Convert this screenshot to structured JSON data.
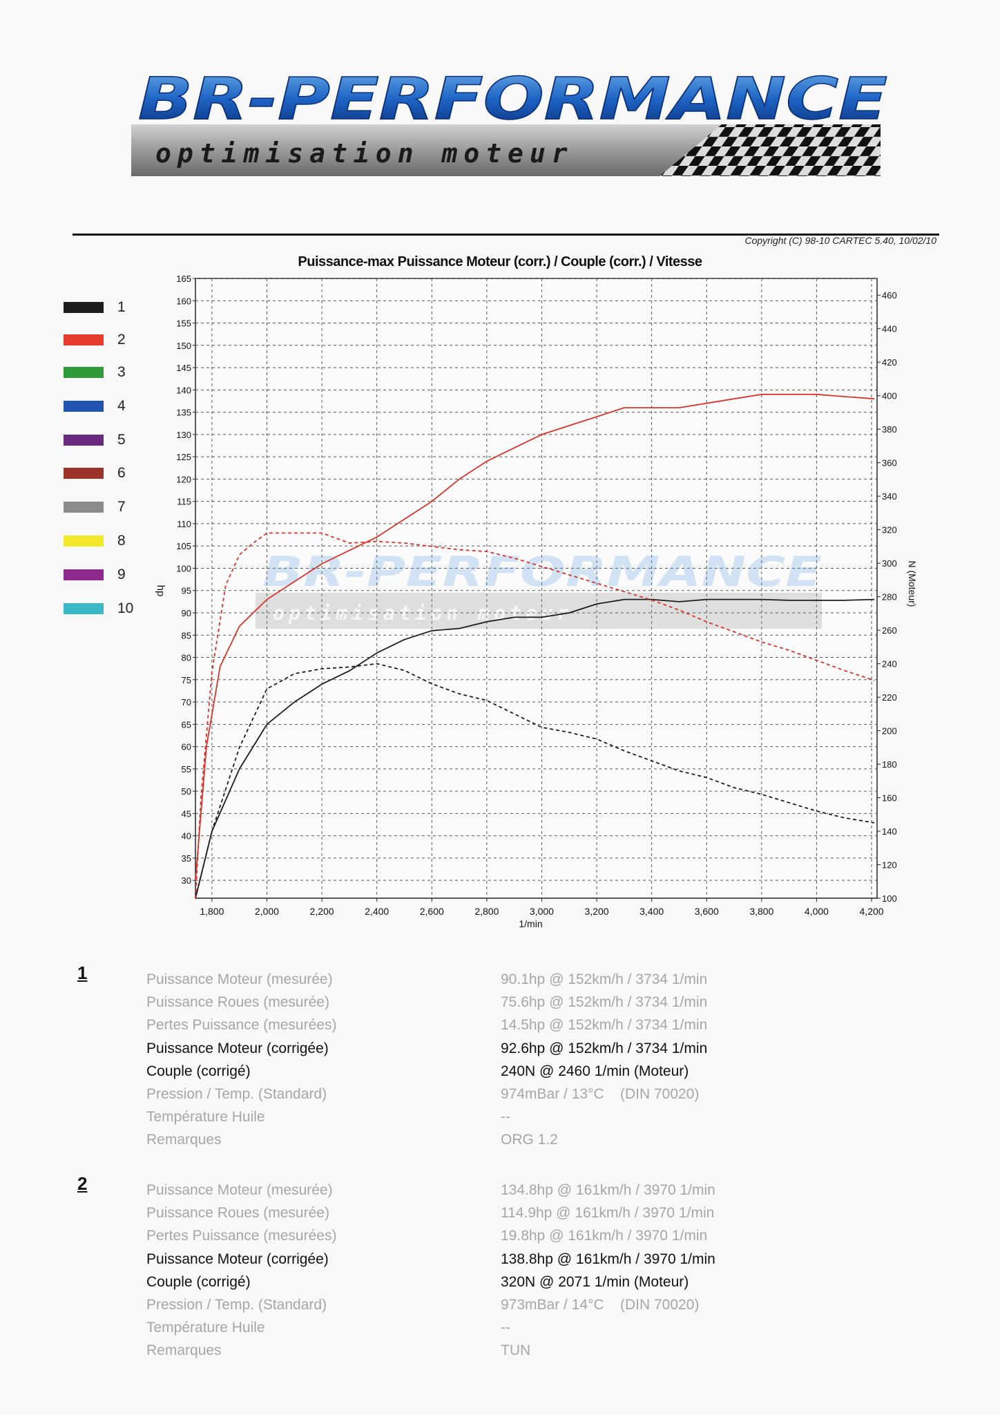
{
  "logo": {
    "title": "BR-PERFORMANCE",
    "subtitle": "optimisation moteur"
  },
  "copyright": "Copyright (C) 98-10 CARTEC 5.40, 10/02/10",
  "legend": [
    {
      "num": "1",
      "color": "#1c1c1c"
    },
    {
      "num": "2",
      "color": "#e53a2c"
    },
    {
      "num": "3",
      "color": "#2e9a3a"
    },
    {
      "num": "4",
      "color": "#2153b0"
    },
    {
      "num": "5",
      "color": "#6a2a7e"
    },
    {
      "num": "6",
      "color": "#9c3328"
    },
    {
      "num": "7",
      "color": "#8c8c8c"
    },
    {
      "num": "8",
      "color": "#f2e82a"
    },
    {
      "num": "9",
      "color": "#8e2a8c"
    },
    {
      "num": "10",
      "color": "#3ab8c6"
    }
  ],
  "chart_data": {
    "type": "line",
    "title": "Puissance-max Puissance Moteur (corr.) / Couple (corr.) / Vitesse",
    "xlabel": "1/min",
    "ylabel": "hp",
    "y2label": "N (Moteur)",
    "xlim": [
      1740,
      4220
    ],
    "ylim": [
      26,
      165
    ],
    "y2lim": [
      100,
      470
    ],
    "x_ticks": [
      1800,
      2000,
      2200,
      2400,
      2600,
      2800,
      3000,
      3200,
      3400,
      3600,
      3800,
      4000,
      4200
    ],
    "x_tick_labels": [
      "1,800",
      "2,000",
      "2,200",
      "2,400",
      "2,600",
      "2,800",
      "3,000",
      "3,200",
      "3,400",
      "3,600",
      "3,800",
      "4,000",
      "4,200"
    ],
    "y_ticks": [
      30,
      35,
      40,
      45,
      50,
      55,
      60,
      65,
      70,
      75,
      80,
      85,
      90,
      95,
      100,
      105,
      110,
      115,
      120,
      125,
      130,
      135,
      140,
      145,
      150,
      155,
      160,
      165
    ],
    "y2_ticks": [
      100,
      120,
      140,
      160,
      180,
      200,
      220,
      240,
      260,
      280,
      300,
      320,
      340,
      360,
      380,
      400,
      420,
      440,
      460
    ],
    "grid": true,
    "series": [
      {
        "name": "1 Puissance (corr.)",
        "color": "#1c1c1c",
        "style": "solid",
        "axis": "left",
        "x": [
          1740,
          1800,
          1900,
          2000,
          2100,
          2200,
          2300,
          2400,
          2500,
          2600,
          2700,
          2800,
          2900,
          3000,
          3100,
          3200,
          3300,
          3400,
          3500,
          3600,
          3700,
          3800,
          3900,
          4000,
          4100,
          4210
        ],
        "y": [
          26,
          41,
          55,
          65,
          70,
          74,
          77,
          81,
          84,
          86,
          86.5,
          88,
          89,
          89,
          90,
          92,
          93,
          93,
          92.5,
          93,
          93,
          93,
          92.8,
          92.8,
          92.8,
          93
        ]
      },
      {
        "name": "2 Puissance (corr.)",
        "color": "#d8342a",
        "style": "solid",
        "axis": "left",
        "x": [
          1740,
          1780,
          1830,
          1900,
          2000,
          2100,
          2200,
          2300,
          2400,
          2500,
          2600,
          2700,
          2800,
          2900,
          3000,
          3100,
          3200,
          3300,
          3400,
          3500,
          3600,
          3700,
          3800,
          3900,
          4000,
          4100,
          4210
        ],
        "y": [
          30,
          60,
          78,
          87,
          93,
          97,
          101,
          104,
          107,
          111,
          115,
          120,
          124,
          127,
          130,
          132,
          134,
          136,
          136,
          136,
          137,
          138,
          139,
          139,
          139,
          138.5,
          138
        ]
      },
      {
        "name": "1 Couple (corr.)",
        "color": "#1c1c1c",
        "style": "dashed",
        "axis": "right",
        "x": [
          1740,
          1800,
          1900,
          2000,
          2100,
          2200,
          2300,
          2400,
          2500,
          2600,
          2700,
          2800,
          2900,
          3000,
          3100,
          3200,
          3300,
          3400,
          3500,
          3600,
          3700,
          3800,
          3900,
          4000,
          4100,
          4210
        ],
        "y": [
          100,
          140,
          190,
          225,
          234,
          237,
          238,
          240,
          236,
          228,
          222,
          218,
          210,
          202,
          199,
          195,
          188,
          182,
          176,
          172,
          166,
          162,
          157,
          152,
          148,
          145
        ]
      },
      {
        "name": "2 Couple (corr.)",
        "color": "#d8342a",
        "style": "dashed",
        "axis": "right",
        "x": [
          1740,
          1760,
          1800,
          1850,
          1900,
          1950,
          2000,
          2100,
          2200,
          2300,
          2400,
          2500,
          2600,
          2700,
          2800,
          2900,
          3000,
          3100,
          3200,
          3300,
          3400,
          3500,
          3600,
          3700,
          3800,
          3900,
          4000,
          4100,
          4210
        ],
        "y": [
          100,
          160,
          235,
          287,
          305,
          312,
          318,
          318,
          318,
          312,
          313,
          312,
          310,
          308,
          307,
          303,
          298,
          293,
          288,
          283,
          278,
          272,
          265,
          259,
          253,
          248,
          242,
          236,
          230
        ]
      }
    ]
  },
  "results": [
    {
      "num": "1",
      "rows": [
        {
          "label": "Puissance Moteur (mesurée)",
          "value": "90.1hp @ 152km/h / 3734 1/min",
          "emph": false
        },
        {
          "label": "Puissance Roues (mesurée)",
          "value": "75.6hp @ 152km/h / 3734 1/min",
          "emph": false
        },
        {
          "label": "Pertes Puissance (mesurées)",
          "value": "14.5hp @ 152km/h / 3734 1/min",
          "emph": false
        },
        {
          "label": "Puissance Moteur (corrigée)",
          "value": "92.6hp @ 152km/h / 3734 1/min",
          "emph": true
        },
        {
          "label": "Couple (corrigé)",
          "value": "240N @ 2460 1/min (Moteur)",
          "emph": true
        },
        {
          "label": "Pression / Temp. (Standard)",
          "value": "974mBar / 13°C    (DIN 70020)",
          "emph": false
        },
        {
          "label": "Température Huile",
          "value": "--",
          "emph": false
        },
        {
          "label": "Remarques",
          "value": "ORG 1.2",
          "emph": false
        }
      ]
    },
    {
      "num": "2",
      "rows": [
        {
          "label": "Puissance Moteur (mesurée)",
          "value": "134.8hp @ 161km/h / 3970 1/min",
          "emph": false
        },
        {
          "label": "Puissance Roues (mesurée)",
          "value": "114.9hp @ 161km/h / 3970 1/min",
          "emph": false
        },
        {
          "label": "Pertes Puissance (mesurées)",
          "value": "19.8hp @ 161km/h / 3970 1/min",
          "emph": false
        },
        {
          "label": "Puissance Moteur (corrigée)",
          "value": "138.8hp @ 161km/h / 3970 1/min",
          "emph": true
        },
        {
          "label": "Couple (corrigé)",
          "value": "320N @ 2071 1/min (Moteur)",
          "emph": true
        },
        {
          "label": "Pression / Temp. (Standard)",
          "value": "973mBar / 14°C    (DIN 70020)",
          "emph": false
        },
        {
          "label": "Température Huile",
          "value": "--",
          "emph": false
        },
        {
          "label": "Remarques",
          "value": "TUN",
          "emph": false
        }
      ]
    }
  ]
}
